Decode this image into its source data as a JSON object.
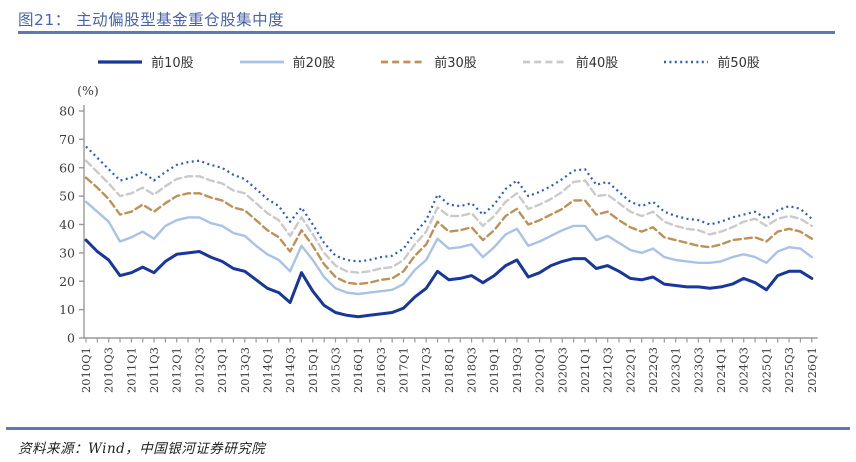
{
  "header": {
    "title": "图21： 主动偏股型基金重仓股集中度"
  },
  "footer": {
    "source": "资料来源：Wind，中国银河证券研究院"
  },
  "colors": {
    "title": "#4A64A8",
    "rule": "#5B79B4",
    "axis": "#999999",
    "tick_label": "#3d3d3d",
    "series_top10": "#17379B",
    "series_top20": "#A9C2E8",
    "series_top30": "#BF9156",
    "series_top40": "#C9CACC",
    "series_top50": "#2E5BC6"
  },
  "chart_data": {
    "type": "line",
    "title": "主动偏股型基金重仓股集中度",
    "ylabel": "(%)",
    "ylim": [
      0,
      80
    ],
    "ytick_step": 10,
    "grid": false,
    "legend_position": "top",
    "x_label_every": 2,
    "x": [
      "2010Q1",
      "2010Q2",
      "2010Q3",
      "2010Q4",
      "2011Q1",
      "2011Q2",
      "2011Q3",
      "2011Q4",
      "2012Q1",
      "2012Q2",
      "2012Q3",
      "2012Q4",
      "2013Q1",
      "2013Q2",
      "2013Q3",
      "2013Q4",
      "2014Q1",
      "2014Q2",
      "2014Q3",
      "2014Q4",
      "2015Q1",
      "2015Q2",
      "2015Q3",
      "2015Q4",
      "2016Q1",
      "2016Q2",
      "2016Q3",
      "2016Q4",
      "2017Q1",
      "2017Q2",
      "2017Q3",
      "2017Q4",
      "2018Q1",
      "2018Q2",
      "2018Q3",
      "2018Q4",
      "2019Q1",
      "2019Q2",
      "2019Q3",
      "2019Q4",
      "2020Q1",
      "2020Q2",
      "2020Q3",
      "2020Q4",
      "2021Q1",
      "2021Q2",
      "2021Q3",
      "2021Q4",
      "2022Q1",
      "2022Q2",
      "2022Q3",
      "2022Q4",
      "2023Q1",
      "2023Q2",
      "2023Q3",
      "2023Q4",
      "2024Q1",
      "2024Q2",
      "2024Q3",
      "2024Q4",
      "2025Q1",
      "2025Q2",
      "2025Q3",
      "2025Q4",
      "2026Q1"
    ],
    "series": [
      {
        "name": "前10股",
        "color": "#17379B",
        "style": "solid",
        "width": 3,
        "values": [
          34.5,
          30.5,
          27.5,
          22,
          23,
          25,
          23,
          27,
          29.5,
          30,
          30.5,
          28.5,
          27,
          24.5,
          23.5,
          20.5,
          17.5,
          16,
          12.5,
          23,
          16.5,
          11.5,
          9,
          8,
          7.5,
          8,
          8.5,
          9,
          10.5,
          14.5,
          17.5,
          23.5,
          20.5,
          21,
          22,
          19.5,
          22,
          25.5,
          27.5,
          21.5,
          23,
          25.5,
          27,
          28,
          28,
          24.5,
          25.5,
          23.5,
          21,
          20.5,
          21.5,
          19,
          18.5,
          18,
          18,
          17.5,
          18,
          19,
          21,
          19.5,
          17,
          22,
          23.5,
          23.5,
          21
        ]
      },
      {
        "name": "前20股",
        "color": "#A9C2E8",
        "style": "solid",
        "width": 2.4,
        "values": [
          48,
          44.5,
          41,
          34,
          35.5,
          37.5,
          35,
          39.5,
          41.5,
          42.5,
          42.5,
          40.5,
          39.5,
          37,
          36,
          32.5,
          29.5,
          27.5,
          23.5,
          32.5,
          27.5,
          21.5,
          17.5,
          16,
          15.5,
          16,
          16.5,
          17,
          19,
          24,
          27.5,
          35,
          31.5,
          32,
          33,
          28.5,
          32,
          36.5,
          38.5,
          32.5,
          34,
          36,
          38,
          39.5,
          39.5,
          34.5,
          36,
          33.5,
          31,
          30,
          31.5,
          28.5,
          27.5,
          27,
          26.5,
          26.5,
          27,
          28.5,
          29.5,
          28.5,
          26.5,
          30.5,
          32,
          31.5,
          28.5
        ]
      },
      {
        "name": "前30股",
        "color": "#BF9156",
        "style": "dashed",
        "width": 2.4,
        "values": [
          56.5,
          53,
          49,
          43.5,
          44.5,
          47,
          44.5,
          47.5,
          50,
          51,
          51,
          49.5,
          48.5,
          46,
          45,
          41.5,
          38,
          35.5,
          30.5,
          38,
          32.5,
          26,
          21.5,
          19.5,
          19,
          19.5,
          20.5,
          21,
          23.5,
          29,
          33,
          41,
          37.5,
          38,
          39,
          34.5,
          38,
          43,
          45.5,
          40,
          41.5,
          43.5,
          45.5,
          48.5,
          48.5,
          43.5,
          44.5,
          41.5,
          39,
          37.5,
          39,
          35.5,
          34.5,
          33.5,
          32.5,
          32,
          33,
          34.5,
          35,
          35.5,
          34,
          37.5,
          38.5,
          37.5,
          35
        ]
      },
      {
        "name": "前40股",
        "color": "#C9CACC",
        "style": "dashed",
        "width": 2.4,
        "values": [
          62.5,
          58.5,
          54.5,
          50,
          51,
          53,
          50.5,
          53.5,
          56,
          57,
          57,
          55.5,
          54.5,
          52,
          51,
          47.5,
          44,
          41.5,
          36,
          42.5,
          36.5,
          30,
          25.5,
          23.5,
          23,
          23.5,
          24.5,
          25,
          27.5,
          33,
          37.5,
          46,
          43,
          43,
          44,
          39.5,
          43,
          48,
          51,
          45.5,
          47,
          49,
          51.5,
          55,
          55.5,
          50,
          50.5,
          47.5,
          44.5,
          43,
          44.5,
          41,
          39.5,
          38.5,
          38,
          36.5,
          37.5,
          39,
          41,
          42,
          39.5,
          42,
          43,
          42,
          39.5
        ]
      },
      {
        "name": "前50股",
        "color": "#2E5BC6",
        "style": "dotted",
        "width": 2.2,
        "values": [
          67.5,
          63.5,
          59.5,
          55.5,
          56.5,
          58.5,
          55.5,
          58.5,
          61,
          62,
          62.5,
          61,
          60,
          57.5,
          56,
          52.5,
          49,
          46.5,
          41,
          46,
          40,
          33.5,
          29,
          27.5,
          27,
          27.5,
          28.5,
          29,
          31.5,
          37,
          41.5,
          50.5,
          47,
          46.5,
          47.5,
          43.5,
          47,
          52.5,
          55.5,
          50,
          51.5,
          53.5,
          56,
          59,
          59.5,
          54,
          55,
          51.5,
          48,
          46.5,
          48,
          44.5,
          43,
          42,
          41.5,
          40,
          41,
          42.5,
          43.5,
          44.5,
          42,
          45,
          46.5,
          45.5,
          42
        ]
      }
    ]
  }
}
